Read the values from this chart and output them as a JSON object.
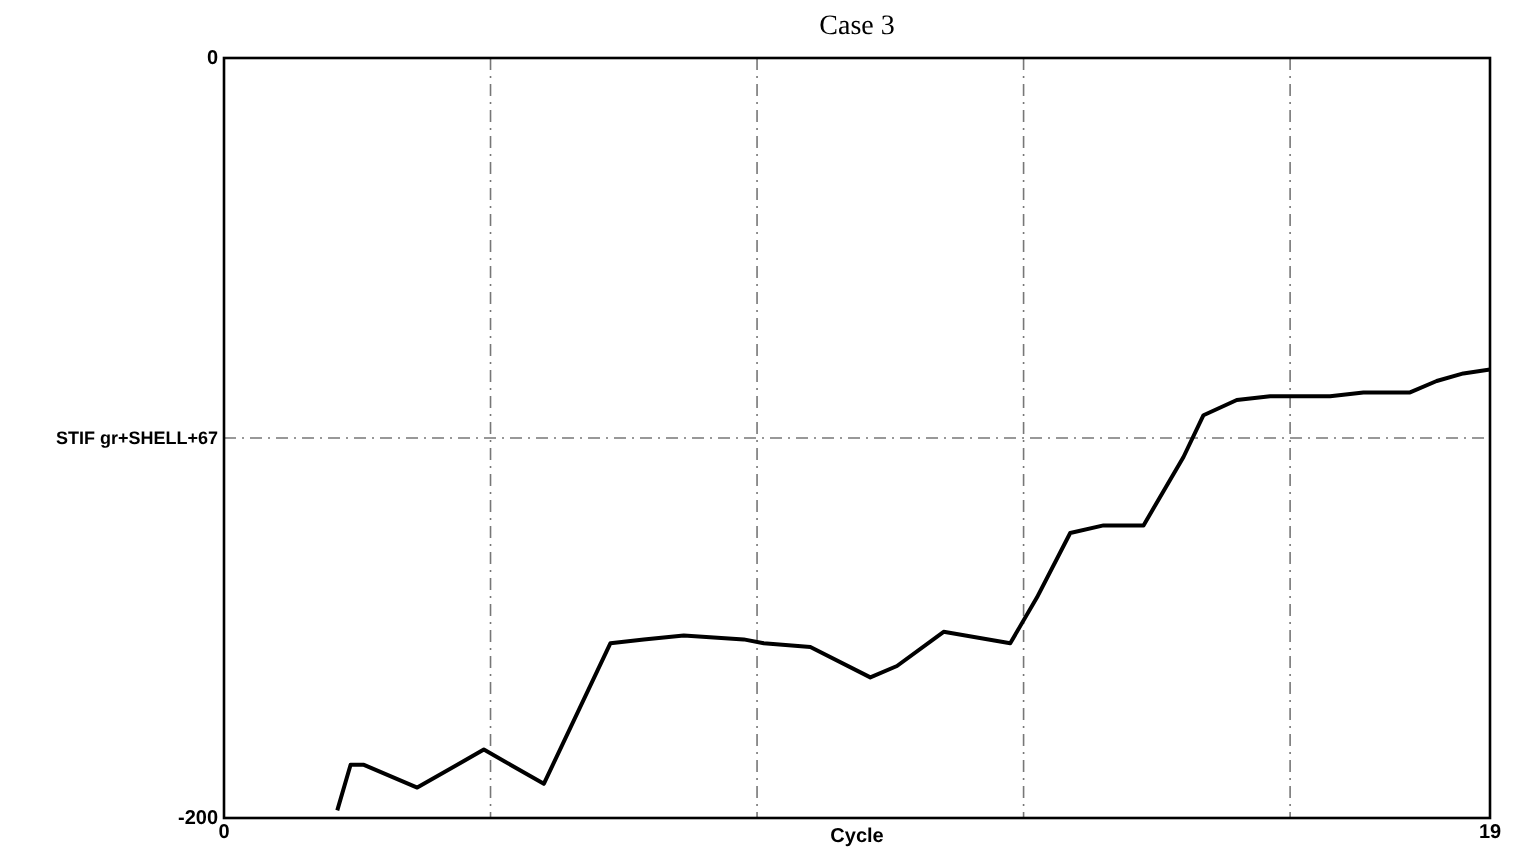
{
  "chart_data": {
    "type": "line",
    "title": "Case 3",
    "xlabel": "Cycle",
    "ylabel": "STIF gr+SHELL+67",
    "xlim": [
      0,
      19
    ],
    "xticks": [
      0,
      {
        "value": 4,
        "label": null
      },
      {
        "value": 8,
        "label": null
      },
      {
        "value": 12,
        "label": null
      },
      {
        "value": 16,
        "label": null
      },
      19
    ],
    "ylim": [
      -200,
      0
    ],
    "yticks": [
      -200,
      {
        "value": -100,
        "label": null
      },
      0
    ],
    "grid": true,
    "marker": "none",
    "line_style": "solid",
    "series": [
      {
        "color": "#000000",
        "x": [
          1.7,
          1.9,
          2.1,
          2.9,
          3.9,
          4.8,
          5.8,
          6.3,
          6.9,
          7.8,
          8.1,
          8.8,
          9.7,
          10.1,
          10.8,
          11.8,
          12.2,
          12.7,
          13.2,
          13.8,
          14.4,
          14.7,
          15.2,
          15.7,
          16.6,
          17.1,
          17.8,
          18.2,
          18.6,
          19
        ],
        "values": [
          -198,
          -186,
          -186,
          -192,
          -182,
          -191,
          -154,
          -153,
          -152,
          -153,
          -154,
          -155,
          -163,
          -160,
          -151,
          -154,
          -142,
          -125,
          -123,
          -123,
          -105,
          -94,
          -90,
          -89,
          -89,
          -88,
          -88,
          -85,
          -83,
          -82
        ]
      }
    ]
  }
}
